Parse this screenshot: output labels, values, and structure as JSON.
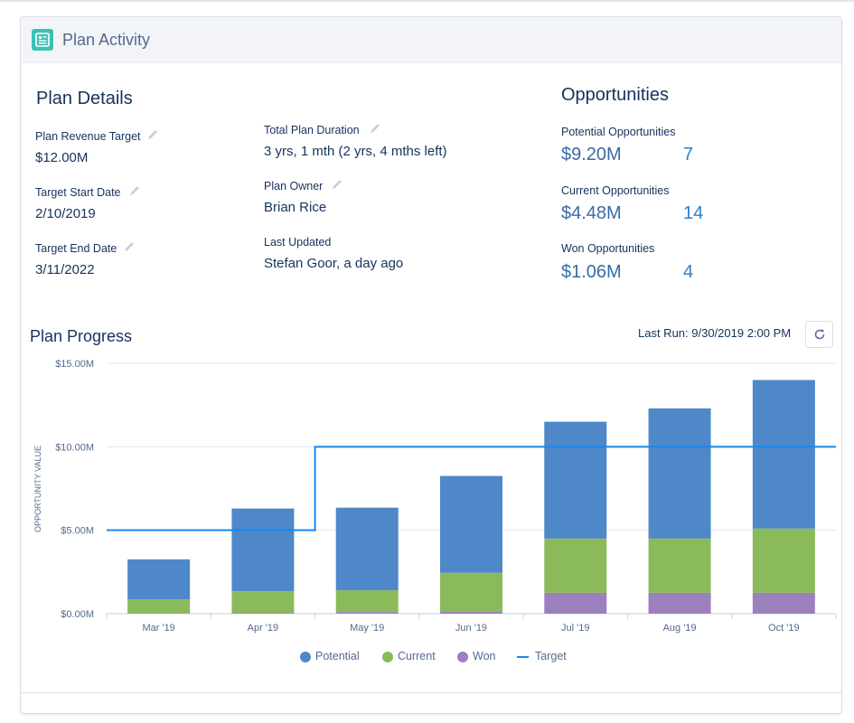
{
  "card": {
    "title": "Plan Activity",
    "icon": "report-icon",
    "icon_color": "#3cc2b3"
  },
  "plan_details": {
    "title": "Plan Details",
    "fields": {
      "revenue_target": {
        "label": "Plan Revenue Target",
        "value": "$12.00M"
      },
      "start_date": {
        "label": "Target Start Date",
        "value": "2/10/2019"
      },
      "end_date": {
        "label": "Target End Date",
        "value": "3/11/2022"
      },
      "duration": {
        "label": "Total Plan Duration",
        "value": "3 yrs, 1 mth (2 yrs, 4 mths left)"
      },
      "owner": {
        "label": "Plan Owner",
        "value": "Brian Rice"
      },
      "last_updated": {
        "label": "Last Updated",
        "value": "Stefan Goor, a day ago"
      }
    }
  },
  "opportunities": {
    "title": "Opportunities",
    "potential": {
      "label": "Potential Opportunities",
      "amount": "$9.20M",
      "count": "7"
    },
    "current": {
      "label": "Current Opportunities",
      "amount": "$4.48M",
      "count": "14"
    },
    "won": {
      "label": "Won Opportunities",
      "amount": "$1.06M",
      "count": "4"
    }
  },
  "plan_progress": {
    "title": "Plan Progress",
    "last_run": "Last Run: 9/30/2019 2:00 PM",
    "refresh_icon": "refresh-icon"
  },
  "colors": {
    "potential": "#4f88c9",
    "current": "#8bba5b",
    "won": "#9c80be",
    "target": "#1589ee",
    "grid": "#e0e5ee",
    "axis_text": "#54698d"
  },
  "chart_data": {
    "type": "bar",
    "stacked": true,
    "categories": [
      "Mar '19",
      "Apr '19",
      "May '19",
      "Jun '19",
      "Jul '19",
      "Aug '19",
      "Oct '19"
    ],
    "series": [
      {
        "name": "Won",
        "values": [
          0,
          0.05,
          0.1,
          0.15,
          1.25,
          1.25,
          1.25
        ]
      },
      {
        "name": "Current",
        "values": [
          0.85,
          1.3,
          1.3,
          2.3,
          3.25,
          3.25,
          3.85
        ]
      },
      {
        "name": "Potential",
        "values": [
          2.4,
          4.95,
          4.95,
          5.8,
          7.0,
          7.8,
          8.9
        ]
      }
    ],
    "target": {
      "name": "Target",
      "values": [
        5.0,
        5.0,
        10.0,
        10.0,
        10.0,
        10.0,
        10.0
      ]
    },
    "ylabel": "OPPORTUNITY VALUE",
    "xlabel": "",
    "ylim": [
      0,
      15
    ],
    "yticks": [
      {
        "value": 0,
        "label": "$0.00M"
      },
      {
        "value": 5,
        "label": "$5.00M"
      },
      {
        "value": 10,
        "label": "$10.00M"
      },
      {
        "value": 15,
        "label": "$15.00M"
      }
    ],
    "grid": true,
    "legend": "bottom-center",
    "legend_items": [
      "Potential",
      "Current",
      "Won",
      "Target"
    ]
  }
}
